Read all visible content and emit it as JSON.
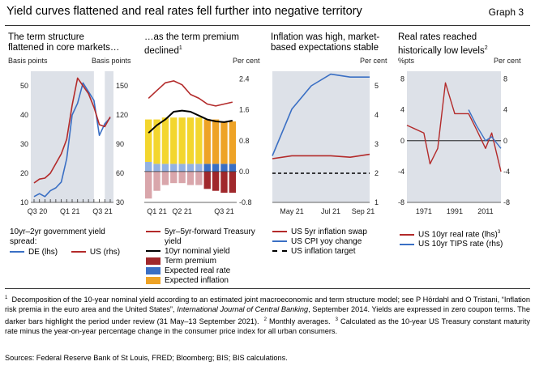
{
  "header": {
    "title": "Yield curves flattened and real rates fell further into negative territory",
    "graph_label": "Graph 3"
  },
  "panels": [
    {
      "title_line1": "The term structure",
      "title_line2": "flattened in core markets…",
      "unit_left": "Basis points",
      "unit_right": "Basis points",
      "legend": {
        "heading_line1": "10yr–2yr government yield",
        "heading_line2": "spread:",
        "series1": "DE (lhs)",
        "series2": "US (rhs)"
      }
    },
    {
      "title_line1": "…as the term premium",
      "title_line2": "declined",
      "title_sup": "1",
      "unit_right": "Per cent",
      "legend": {
        "s1_line1": "5yr–5yr-forward Treasury",
        "s1_line2": "yield",
        "s2": "10yr nominal yield",
        "s3": "Term premium",
        "s4": "Expected real rate",
        "s5": "Expected inflation"
      }
    },
    {
      "title_line1": "Inflation was high, market-",
      "title_line2": "based expectations stable",
      "unit_right": "Per cent",
      "legend": {
        "s1": "US 5yr inflation swap",
        "s2": "US CPI yoy change",
        "s3": "US inflation target"
      }
    },
    {
      "title_line1": "Real rates reached",
      "title_line2": "historically low levels",
      "title_sup": "2",
      "unit_left": "%pts",
      "unit_right": "Per cent",
      "legend": {
        "s1": "US 10yr real rate (lhs)",
        "s1_sup": "3",
        "s2": "US 10yr TIPS rate (rhs)"
      }
    }
  ],
  "footnotes": {
    "n1_marker": "1",
    "n1_text": "Decomposition of the 10-year nominal yield according to an estimated joint macroeconomic and term structure model; see P Hördahl and O Tristani, “Inflation risk premia in the euro area and the United States”,",
    "n1_journal": "International Journal of Central Banking",
    "n1_tail": ", September 2014. Yields are expressed in zero coupon terms. The darker bars highlight the period under review (31 May–13 September 2021).",
    "n2_marker": "2",
    "n2_text": "Monthly averages.",
    "n3_marker": "3",
    "n3_text": "Calculated as the 10-year US Treasury constant maturity rate minus the year-on-year percentage change in the consumer price index for all urban consumers.",
    "sources": "Sources: Federal Reserve Bank of St Louis, FRED; Bloomberg; BIS; BIS calculations."
  },
  "colors": {
    "blue": "#3a6fc4",
    "red": "#b32a2a",
    "darkred": "#a0282c",
    "yellow": "#f3d62e",
    "orange": "#eea326",
    "shade": "#dde1e8",
    "black": "#000000"
  },
  "chart_data": [
    {
      "type": "line",
      "x": [
        "Q3 20",
        "Q3 20",
        "Q3 20",
        "Q4 20",
        "Q4 20",
        "Q4 20",
        "Q1 21",
        "Q1 21",
        "Q1 21",
        "Q2 21",
        "Q2 21",
        "Q2 21",
        "Q3 21",
        "Q3 21",
        "Q3 21"
      ],
      "xticks": [
        "Q3 20",
        "Q1 21",
        "Q3 21"
      ],
      "yleft": {
        "ticks": [
          10,
          20,
          30,
          40,
          50
        ],
        "range": [
          10,
          55
        ]
      },
      "yright": {
        "ticks": [
          30,
          60,
          90,
          120,
          150
        ],
        "range": [
          30,
          165
        ]
      },
      "series": [
        {
          "name": "DE (lhs)",
          "axis": "left",
          "values": [
            12,
            13,
            12,
            14,
            15,
            17,
            25,
            40,
            44,
            51,
            48,
            45,
            33,
            37,
            39
          ]
        },
        {
          "name": "US (rhs)",
          "axis": "right",
          "values": [
            50,
            54,
            55,
            60,
            70,
            80,
            95,
            130,
            158,
            150,
            142,
            128,
            110,
            108,
            118
          ]
        }
      ],
      "shaded": [
        11,
        13
      ]
    },
    {
      "type": "bar",
      "categories": [
        "Q1 21",
        "Q1 21",
        "Q1 21",
        "Q2 21",
        "Q2 21",
        "Q2 21",
        "Q2 21",
        "Q3 21",
        "Q3 21",
        "Q3 21",
        "Q3 21"
      ],
      "xticks": [
        "Q1 21",
        "Q2 21",
        "Q3 21"
      ],
      "yright": {
        "ticks": [
          -0.8,
          0.0,
          0.8,
          1.6,
          2.4
        ],
        "range": [
          -0.8,
          2.6
        ]
      },
      "series": [
        {
          "name": "Expected inflation",
          "values": [
            1.1,
            1.15,
            1.2,
            1.2,
            1.2,
            1.2,
            1.2,
            1.15,
            1.15,
            1.1,
            1.1
          ]
        },
        {
          "name": "Expected real rate",
          "values": [
            0.25,
            0.2,
            0.2,
            0.2,
            0.2,
            0.2,
            0.2,
            0.2,
            0.2,
            0.2,
            0.2
          ]
        },
        {
          "name": "Term premium",
          "values": [
            -0.7,
            -0.5,
            -0.35,
            -0.3,
            -0.3,
            -0.35,
            -0.35,
            -0.45,
            -0.5,
            -0.55,
            -0.55
          ]
        }
      ],
      "lines": [
        {
          "name": "5yr–5yr-forward Treasury yield",
          "values": [
            1.9,
            2.1,
            2.3,
            2.35,
            2.25,
            2.0,
            1.9,
            1.75,
            1.7,
            1.75,
            1.8
          ]
        },
        {
          "name": "10yr nominal yield",
          "values": [
            1.0,
            1.2,
            1.35,
            1.55,
            1.58,
            1.55,
            1.45,
            1.35,
            1.3,
            1.28,
            1.32
          ]
        }
      ],
      "dark_from_index": 7
    },
    {
      "type": "line",
      "x": [
        "Apr 21",
        "May 21",
        "Jun 21",
        "Jul 21",
        "Aug 21",
        "Sep 21"
      ],
      "xticks": [
        "May 21",
        "Jul 21",
        "Sep 21"
      ],
      "yright": {
        "ticks": [
          1,
          2,
          3,
          4,
          5
        ],
        "range": [
          1,
          5.5
        ]
      },
      "series": [
        {
          "name": "US 5yr inflation swap",
          "values": [
            2.5,
            2.6,
            2.6,
            2.6,
            2.55,
            2.65
          ]
        },
        {
          "name": "US CPI yoy change",
          "values": [
            2.6,
            4.2,
            5.0,
            5.4,
            5.3,
            5.3
          ]
        },
        {
          "name": "US inflation target",
          "values": [
            2,
            2,
            2,
            2,
            2,
            2
          ]
        }
      ]
    },
    {
      "type": "line",
      "x": [
        1960,
        1971,
        1975,
        1980,
        1985,
        1991,
        1995,
        2000,
        2005,
        2011,
        2015,
        2021
      ],
      "xticks": [
        "1971",
        "1991",
        "2011"
      ],
      "yleft": {
        "ticks": [
          -8,
          -4,
          0,
          4,
          8
        ],
        "range": [
          -8,
          9
        ]
      },
      "yright": {
        "ticks": [
          -8,
          -4,
          0,
          4,
          8
        ],
        "range": [
          -8,
          9
        ]
      },
      "series": [
        {
          "name": "US 10yr real rate (lhs)",
          "axis": "left",
          "values": [
            2,
            1,
            -3,
            -1,
            7.5,
            3.5,
            3.5,
            3.5,
            1.5,
            -1,
            1,
            -4
          ]
        },
        {
          "name": "US 10yr TIPS rate (rhs)",
          "axis": "right",
          "values": [
            null,
            null,
            null,
            null,
            null,
            null,
            null,
            4,
            2,
            0,
            0.5,
            -1
          ]
        }
      ]
    }
  ]
}
